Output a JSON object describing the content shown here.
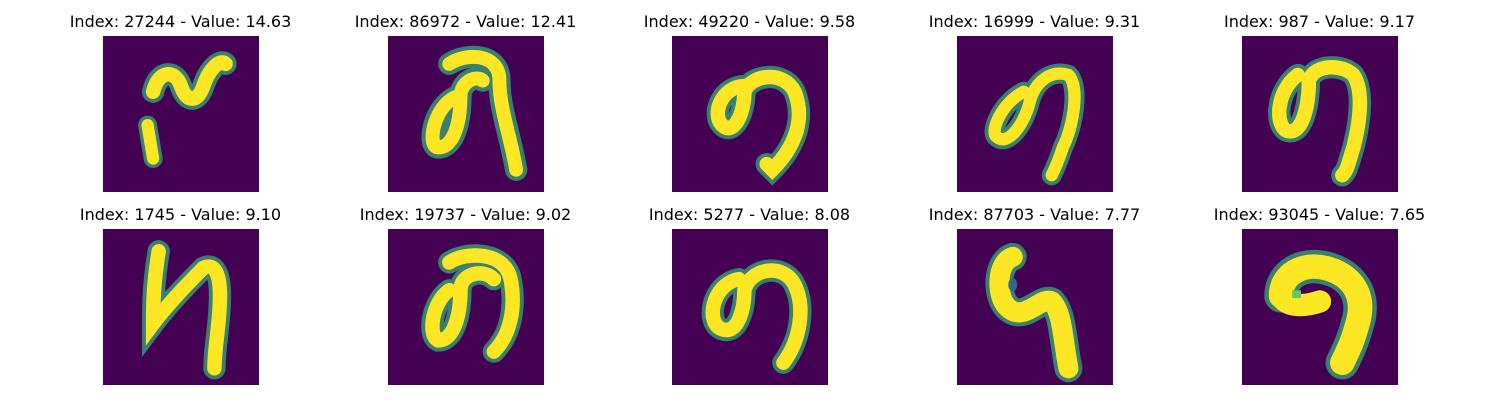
{
  "panels": [
    {
      "index": "27244",
      "value": "14.63",
      "label": "Index: 27244 - Value: 14.63"
    },
    {
      "index": "86972",
      "value": "12.41",
      "label": "Index: 86972 - Value: 12.41"
    },
    {
      "index": "49220",
      "value": "9.58",
      "label": "Index: 49220 - Value: 9.58"
    },
    {
      "index": "16999",
      "value": "9.31",
      "label": "Index: 16999 - Value: 9.31"
    },
    {
      "index": "987",
      "value": "9.17",
      "label": "Index: 987 - Value: 9.17"
    },
    {
      "index": "1745",
      "value": "9.10",
      "label": "Index: 1745 - Value: 9.10"
    },
    {
      "index": "19737",
      "value": "9.02",
      "label": "Index: 19737 - Value: 9.02"
    },
    {
      "index": "5277",
      "value": "8.08",
      "label": "Index: 5277 - Value: 8.08"
    },
    {
      "index": "87703",
      "value": "7.77",
      "label": "Index: 87703 - Value: 7.77"
    },
    {
      "index": "93045",
      "value": "7.65",
      "label": "Index: 93045 - Value: 7.65"
    }
  ],
  "colors": {
    "background": "#440154",
    "stroke": "#fde725",
    "edge": "#35b779"
  }
}
